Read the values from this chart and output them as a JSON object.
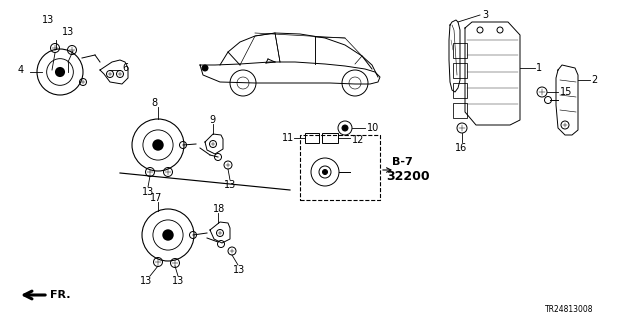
{
  "bg_color": "#ffffff",
  "part_code": "TR24813008",
  "fig_width": 6.4,
  "fig_height": 3.2
}
